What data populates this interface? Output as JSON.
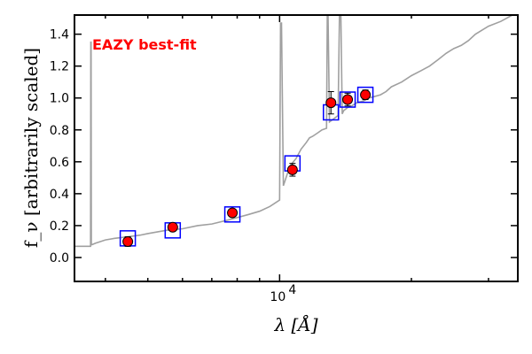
{
  "chart_data": {
    "type": "scatter",
    "xlabel": "λ [Å]",
    "ylabel": "f_ν [arbitrarily scaled]",
    "x_scale": "log",
    "xlim": [
      3400,
      35000
    ],
    "ylim": [
      -0.15,
      1.52
    ],
    "x_tick_labels": [
      {
        "x": 10000,
        "text": "10",
        "exp": "4"
      }
    ],
    "y_ticks": [
      0.0,
      0.2,
      0.4,
      0.6,
      0.8,
      1.0,
      1.2,
      1.4
    ],
    "y_tick_labels": [
      "0.0",
      "0.2",
      "0.4",
      "0.6",
      "0.8",
      "1.0",
      "1.2",
      "1.4"
    ],
    "annotation": {
      "text": "EAZY best-fit",
      "color": "#ff0000"
    },
    "colors": {
      "sed": "#a0a0a0",
      "model_box": "#0000ff",
      "obs_point": "#ff0000",
      "obs_edge": "#000000"
    },
    "series": [
      {
        "type": "line",
        "x": [
          3400,
          3600,
          3700,
          3705,
          3710,
          3715,
          3725,
          3800,
          4000,
          4200,
          4500,
          4800,
          5000,
          5500,
          6000,
          6500,
          7000,
          7500,
          8000,
          8500,
          9000,
          9500,
          10000,
          10050,
          10100,
          10200,
          10400,
          10600,
          10900,
          11200,
          11500,
          11700,
          11900,
          12200,
          12500,
          12800,
          12850,
          12900,
          13000,
          13300,
          13600,
          13700,
          13800,
          13900,
          14000,
          14300,
          14600,
          15000,
          15500,
          16000,
          16500,
          17000,
          17500,
          18000,
          19000,
          20000,
          21000,
          22000,
          23000,
          24000,
          25000,
          26000,
          27000,
          28000,
          30000,
          32000,
          33000,
          34000,
          35000
        ],
        "y": [
          0.07,
          0.07,
          0.07,
          1.35,
          1.35,
          0.08,
          0.08,
          0.09,
          0.11,
          0.12,
          0.13,
          0.14,
          0.15,
          0.17,
          0.18,
          0.2,
          0.21,
          0.23,
          0.25,
          0.27,
          0.29,
          0.32,
          0.36,
          1.47,
          1.47,
          0.45,
          0.52,
          0.58,
          0.62,
          0.68,
          0.72,
          0.75,
          0.76,
          0.78,
          0.8,
          0.81,
          1.52,
          1.52,
          0.85,
          0.87,
          0.89,
          1.52,
          1.52,
          0.9,
          0.92,
          0.94,
          0.95,
          0.97,
          0.98,
          1.0,
          1.01,
          1.02,
          1.04,
          1.07,
          1.1,
          1.14,
          1.17,
          1.2,
          1.24,
          1.28,
          1.31,
          1.33,
          1.36,
          1.4,
          1.45,
          1.48,
          1.5,
          1.52,
          1.52
        ]
      },
      {
        "type": "model_photometry",
        "x": [
          4500,
          5700,
          7800,
          10700,
          13100,
          14300,
          15700
        ],
        "y": [
          0.12,
          0.17,
          0.27,
          0.59,
          0.91,
          0.99,
          1.02
        ]
      },
      {
        "type": "observed_photometry",
        "x": [
          4500,
          5700,
          7800,
          10700,
          13100,
          14300,
          15700
        ],
        "y": [
          0.1,
          0.19,
          0.28,
          0.55,
          0.97,
          0.99,
          1.02
        ],
        "yerr": [
          0.03,
          0.02,
          0.02,
          0.04,
          0.07,
          0.04,
          0.03
        ]
      }
    ]
  }
}
